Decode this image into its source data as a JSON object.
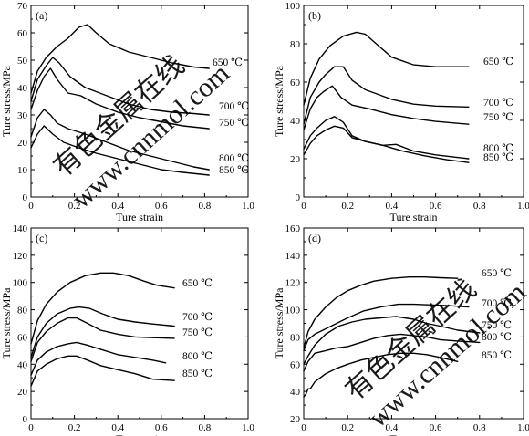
{
  "watermark": {
    "cn": "有色金属在线",
    "url": "www.cnnmol.com",
    "color": "#d6d6d6"
  },
  "chart_data": [
    {
      "type": "line",
      "panel": "(a)",
      "xlabel": "Ture strain",
      "ylabel": "Ture stress/MPa",
      "xlim": [
        0.0,
        1.0
      ],
      "ylim": [
        0,
        70
      ],
      "xticks": [
        "0",
        "0.2",
        "0.4",
        "0.6",
        "0.8",
        "1.0"
      ],
      "yticks": [
        "0",
        "10",
        "20",
        "30",
        "40",
        "50",
        "60",
        "70"
      ],
      "series": [
        {
          "name": "650 ℃",
          "x": [
            0,
            0.03,
            0.07,
            0.12,
            0.17,
            0.22,
            0.26,
            0.3,
            0.36,
            0.45,
            0.55,
            0.65,
            0.75,
            0.82
          ],
          "y": [
            38,
            46,
            51,
            55,
            58,
            62,
            63,
            60,
            56,
            53,
            51,
            49,
            47.5,
            47
          ]
        },
        {
          "name": "700 ℃",
          "x": [
            0,
            0.03,
            0.07,
            0.1,
            0.13,
            0.18,
            0.25,
            0.35,
            0.45,
            0.55,
            0.65,
            0.75,
            0.82
          ],
          "y": [
            35,
            43,
            48,
            51,
            49,
            44,
            40,
            37,
            34,
            32,
            31,
            30.5,
            30
          ]
        },
        {
          "name": "750 ℃",
          "x": [
            0,
            0.03,
            0.06,
            0.09,
            0.12,
            0.17,
            0.23,
            0.3,
            0.4,
            0.5,
            0.6,
            0.7,
            0.82
          ],
          "y": [
            32,
            39,
            44,
            47,
            43,
            38,
            37,
            34,
            31,
            29,
            27.5,
            26,
            25
          ]
        },
        {
          "name": "800 ℃",
          "x": [
            0,
            0.03,
            0.06,
            0.09,
            0.12,
            0.17,
            0.25,
            0.35,
            0.45,
            0.55,
            0.65,
            0.75,
            0.82
          ],
          "y": [
            22,
            29,
            32,
            30,
            27,
            25,
            23,
            20,
            17,
            15,
            13,
            11,
            10
          ]
        },
        {
          "name": "850 ℃",
          "x": [
            0,
            0.03,
            0.06,
            0.1,
            0.15,
            0.22,
            0.3,
            0.4,
            0.5,
            0.6,
            0.7,
            0.82
          ],
          "y": [
            18,
            23,
            26,
            23,
            20,
            18,
            16,
            14,
            12,
            10,
            9,
            8
          ]
        }
      ]
    },
    {
      "type": "line",
      "panel": "(b)",
      "xlabel": "Ture strain",
      "ylabel": "Ture stress/MPa",
      "xlim": [
        0.0,
        1.0
      ],
      "ylim": [
        0,
        100
      ],
      "xticks": [
        "0",
        "0.2",
        "0.4",
        "0.6",
        "0.8",
        "1.0"
      ],
      "yticks": [
        "0",
        "20",
        "40",
        "60",
        "80",
        "100"
      ],
      "series": [
        {
          "name": "650 ℃",
          "x": [
            0,
            0.03,
            0.07,
            0.12,
            0.18,
            0.24,
            0.28,
            0.33,
            0.4,
            0.5,
            0.6,
            0.75
          ],
          "y": [
            48,
            62,
            72,
            79,
            84,
            86,
            85,
            80,
            73,
            69,
            68,
            68
          ]
        },
        {
          "name": "700 ℃",
          "x": [
            0,
            0.03,
            0.07,
            0.1,
            0.14,
            0.18,
            0.22,
            0.28,
            0.4,
            0.5,
            0.6,
            0.75
          ],
          "y": [
            38,
            52,
            60,
            64,
            68,
            68,
            61,
            56,
            51,
            48.5,
            47.5,
            47
          ]
        },
        {
          "name": "750 ℃",
          "x": [
            0,
            0.03,
            0.06,
            0.09,
            0.13,
            0.17,
            0.22,
            0.3,
            0.4,
            0.5,
            0.6,
            0.75
          ],
          "y": [
            35,
            46,
            52,
            55,
            58,
            52,
            48,
            46,
            43,
            41,
            39.5,
            38
          ]
        },
        {
          "name": "800 ℃",
          "x": [
            0,
            0.03,
            0.06,
            0.1,
            0.14,
            0.18,
            0.22,
            0.28,
            0.36,
            0.42,
            0.5,
            0.6,
            0.75
          ],
          "y": [
            25,
            32,
            36,
            40,
            42,
            39,
            32,
            29,
            27,
            27.5,
            24,
            22,
            20
          ]
        },
        {
          "name": "850 ℃",
          "x": [
            0,
            0.03,
            0.06,
            0.1,
            0.14,
            0.18,
            0.22,
            0.28,
            0.36,
            0.45,
            0.55,
            0.65,
            0.75
          ],
          "y": [
            22,
            28,
            32,
            35,
            37,
            36,
            31,
            29,
            27,
            24,
            21.5,
            19.5,
            18
          ]
        }
      ]
    },
    {
      "type": "line",
      "panel": "(c)",
      "xlabel": "Ture strain",
      "ylabel": "Ture stress/MPa",
      "xlim": [
        0.0,
        1.0
      ],
      "ylim": [
        0,
        140
      ],
      "xticks": [
        "0",
        "0.2",
        "0.4",
        "0.6",
        "0.8",
        "1.0"
      ],
      "yticks": [
        "0",
        "20",
        "40",
        "60",
        "80",
        "100",
        "120",
        "140"
      ],
      "series": [
        {
          "name": "650 ℃",
          "x": [
            0,
            0.03,
            0.07,
            0.12,
            0.18,
            0.25,
            0.32,
            0.38,
            0.45,
            0.52,
            0.58,
            0.66
          ],
          "y": [
            55,
            72,
            84,
            93,
            100,
            105,
            107,
            107,
            105,
            101,
            98,
            96
          ]
        },
        {
          "name": "700 ℃",
          "x": [
            0,
            0.03,
            0.07,
            0.12,
            0.18,
            0.22,
            0.27,
            0.33,
            0.4,
            0.48,
            0.56,
            0.66
          ],
          "y": [
            45,
            60,
            70,
            77,
            81,
            82,
            81,
            77,
            73,
            71,
            69.5,
            68
          ]
        },
        {
          "name": "750 ℃",
          "x": [
            0,
            0.03,
            0.07,
            0.12,
            0.17,
            0.21,
            0.26,
            0.32,
            0.4,
            0.48,
            0.56,
            0.66
          ],
          "y": [
            42,
            56,
            64,
            70,
            74,
            74,
            70,
            65,
            62,
            60,
            59.5,
            59
          ]
        },
        {
          "name": "800 ℃",
          "x": [
            0,
            0.03,
            0.07,
            0.12,
            0.17,
            0.21,
            0.26,
            0.32,
            0.4,
            0.48,
            0.56,
            0.62
          ],
          "y": [
            32,
            43,
            49,
            53,
            55,
            56,
            54,
            51,
            47,
            45,
            43,
            41
          ]
        },
        {
          "name": "850 ℃",
          "x": [
            0,
            0.03,
            0.07,
            0.12,
            0.17,
            0.21,
            0.26,
            0.32,
            0.4,
            0.48,
            0.56,
            0.66
          ],
          "y": [
            24,
            35,
            40,
            44,
            46,
            46,
            43,
            39,
            36,
            33,
            29,
            28
          ]
        }
      ]
    },
    {
      "type": "line",
      "panel": "(d)",
      "xlabel": "Ture strain",
      "ylabel": "Ture stress/MPa",
      "xlim": [
        0.0,
        1.0
      ],
      "ylim": [
        20,
        160
      ],
      "xticks": [
        "0",
        "0.2",
        "0.4",
        "0.6",
        "0.8",
        "1.0"
      ],
      "yticks": [
        "20",
        "40",
        "60",
        "80",
        "100",
        "120",
        "140",
        "160"
      ],
      "series": [
        {
          "name": "650 ℃",
          "x": [
            0,
            0.02,
            0.05,
            0.1,
            0.15,
            0.2,
            0.26,
            0.32,
            0.4,
            0.48,
            0.55,
            0.62,
            0.7
          ],
          "y": [
            72,
            84,
            93,
            102,
            109,
            114,
            118,
            121,
            123,
            124,
            124,
            123.5,
            123
          ]
        },
        {
          "name": "700 ℃",
          "x": [
            0,
            0.02,
            0.05,
            0.1,
            0.15,
            0.2,
            0.27,
            0.35,
            0.43,
            0.5,
            0.58,
            0.66,
            0.75
          ],
          "y": [
            70,
            78,
            82,
            86,
            90,
            94,
            99,
            102,
            104,
            104,
            103.5,
            103,
            102
          ]
        },
        {
          "name": "750 ℃",
          "x": [
            0,
            0.02,
            0.05,
            0.1,
            0.16,
            0.22,
            0.28,
            0.35,
            0.42,
            0.5,
            0.56,
            0.62,
            0.7,
            0.8
          ],
          "y": [
            60,
            66,
            74,
            82,
            88,
            91,
            93,
            94,
            95,
            93,
            90,
            88,
            85,
            83
          ]
        },
        {
          "name": "800 ℃",
          "x": [
            0,
            0.02,
            0.05,
            0.1,
            0.15,
            0.2,
            0.26,
            0.32,
            0.38,
            0.44,
            0.5,
            0.56,
            0.62,
            0.7,
            0.8
          ],
          "y": [
            55,
            62,
            68,
            70,
            72,
            73,
            76,
            79,
            81,
            82,
            81,
            80,
            78,
            77,
            76
          ]
        },
        {
          "name": "850 ℃",
          "x": [
            0,
            0.01,
            0.02,
            0.03,
            0.05,
            0.1,
            0.15,
            0.2,
            0.26,
            0.32,
            0.38,
            0.44,
            0.5,
            0.56,
            0.62,
            0.7
          ],
          "y": [
            36,
            38,
            42,
            42,
            47,
            53,
            57,
            60,
            63,
            65,
            67,
            68,
            68,
            67,
            65,
            62
          ]
        }
      ]
    }
  ]
}
